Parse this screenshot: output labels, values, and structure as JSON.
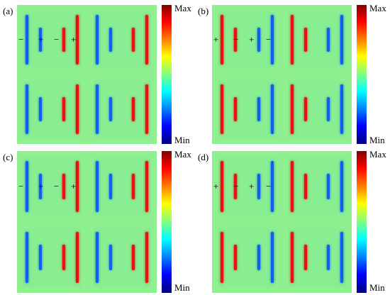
{
  "panels": [
    {
      "label": "(a)",
      "colorbar_max": "Max",
      "colorbar_min": "Min",
      "signs": [
        "−",
        "+",
        "−",
        "+"
      ],
      "outer_bars": "red-right",
      "inner_bars": "red-right"
    },
    {
      "label": "(b)",
      "colorbar_max": "Max",
      "colorbar_min": "Min",
      "signs": [
        "+",
        "−",
        "+",
        "−"
      ],
      "outer_bars": "red-left",
      "inner_bars": "red-left"
    },
    {
      "label": "(c)",
      "colorbar_max": "Max",
      "colorbar_min": "Min",
      "signs": [
        "−",
        "+",
        "−",
        "+"
      ],
      "outer_bars": "red-right",
      "inner_bars": "red-right"
    },
    {
      "label": "(d)",
      "colorbar_max": "Max",
      "colorbar_min": "Min",
      "signs": [
        "+",
        "−",
        "+",
        "−"
      ],
      "outer_bars": "red-left",
      "inner_bars": "red-left"
    }
  ],
  "colors": {
    "background": "#8ff08f",
    "positive": "#e81010",
    "negative": "#1060f0"
  }
}
